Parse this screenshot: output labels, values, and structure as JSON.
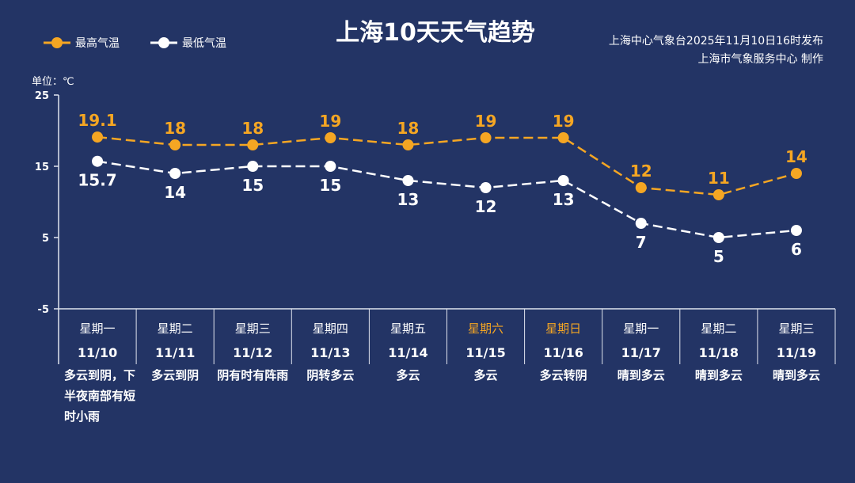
{
  "title": "上海10天天气趋势",
  "credits": {
    "line1": "上海中心气象台2025年11月10日16时发布",
    "line2": "上海市气象服务中心  制作"
  },
  "colors": {
    "background": "#233465",
    "high": "#f5a623",
    "low": "#ffffff",
    "weekend": "#f5a623"
  },
  "chart_data": {
    "type": "line",
    "unit_label": "单位：℃",
    "ylim": [
      -5,
      25
    ],
    "yticks": [
      -5,
      5,
      15,
      25
    ],
    "weekdays": [
      "星期一",
      "星期二",
      "星期三",
      "星期四",
      "星期五",
      "星期六",
      "星期日",
      "星期一",
      "星期二",
      "星期三"
    ],
    "weekend_flags": [
      false,
      false,
      false,
      false,
      false,
      true,
      true,
      false,
      false,
      false
    ],
    "categories": [
      "11/10",
      "11/11",
      "11/12",
      "11/13",
      "11/14",
      "11/15",
      "11/16",
      "11/17",
      "11/18",
      "11/19"
    ],
    "weather": [
      "多云到阴，下半夜南部有短时小雨",
      "多云到阴",
      "阴有时有阵雨",
      "阴转多云",
      "多云",
      "多云",
      "多云转阴",
      "晴到多云",
      "晴到多云",
      "晴到多云"
    ],
    "series": [
      {
        "name": "最高气温",
        "values": [
          19.1,
          18,
          18,
          19,
          18,
          19,
          19,
          12,
          11,
          14
        ]
      },
      {
        "name": "最低气温",
        "values": [
          15.7,
          14,
          15,
          15,
          13,
          12,
          13,
          7,
          5,
          6
        ]
      }
    ]
  }
}
